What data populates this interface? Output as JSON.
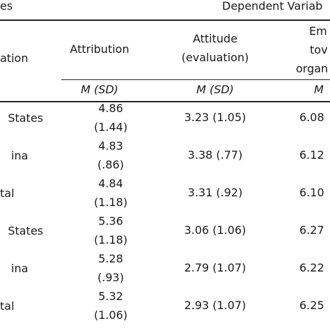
{
  "header": {
    "col0_label": "es",
    "group_label": "Dependent Variab",
    "row_label_partial": "ation",
    "attribution": "Attribution",
    "attitude": [
      "Attitude",
      "(evaluation)"
    ],
    "emotion": [
      "Em",
      "tov",
      "organ"
    ],
    "stat_attribution": "M (SD)",
    "stat_attitude": "M (SD)",
    "stat_emotion": "M"
  },
  "rows": [
    {
      "label": "States",
      "attribution": [
        "4.86",
        "(1.44)"
      ],
      "attitude": "3.23 (1.05)",
      "emotion": "6.08"
    },
    {
      "label": "ina",
      "attribution": [
        "4.83",
        "(.86)"
      ],
      "attitude": "3.38 (.77)",
      "emotion": "6.12"
    },
    {
      "label": "tal",
      "attribution": [
        "4.84",
        "(1.18)"
      ],
      "attitude": "3.31 (.92)",
      "emotion": "6.10"
    },
    {
      "label": "States",
      "attribution": [
        "5.36",
        "(1.18)"
      ],
      "attitude": "3.06 (1.06)",
      "emotion": "6.27"
    },
    {
      "label": "ina",
      "attribution": [
        "5.28",
        "(.93)"
      ],
      "attitude": "2.79 (1.07)",
      "emotion": "6.22"
    },
    {
      "label": "tal",
      "attribution": [
        "5.32",
        "(1.06)"
      ],
      "attitude": "2.93 (1.07)",
      "emotion": "6.25"
    }
  ]
}
